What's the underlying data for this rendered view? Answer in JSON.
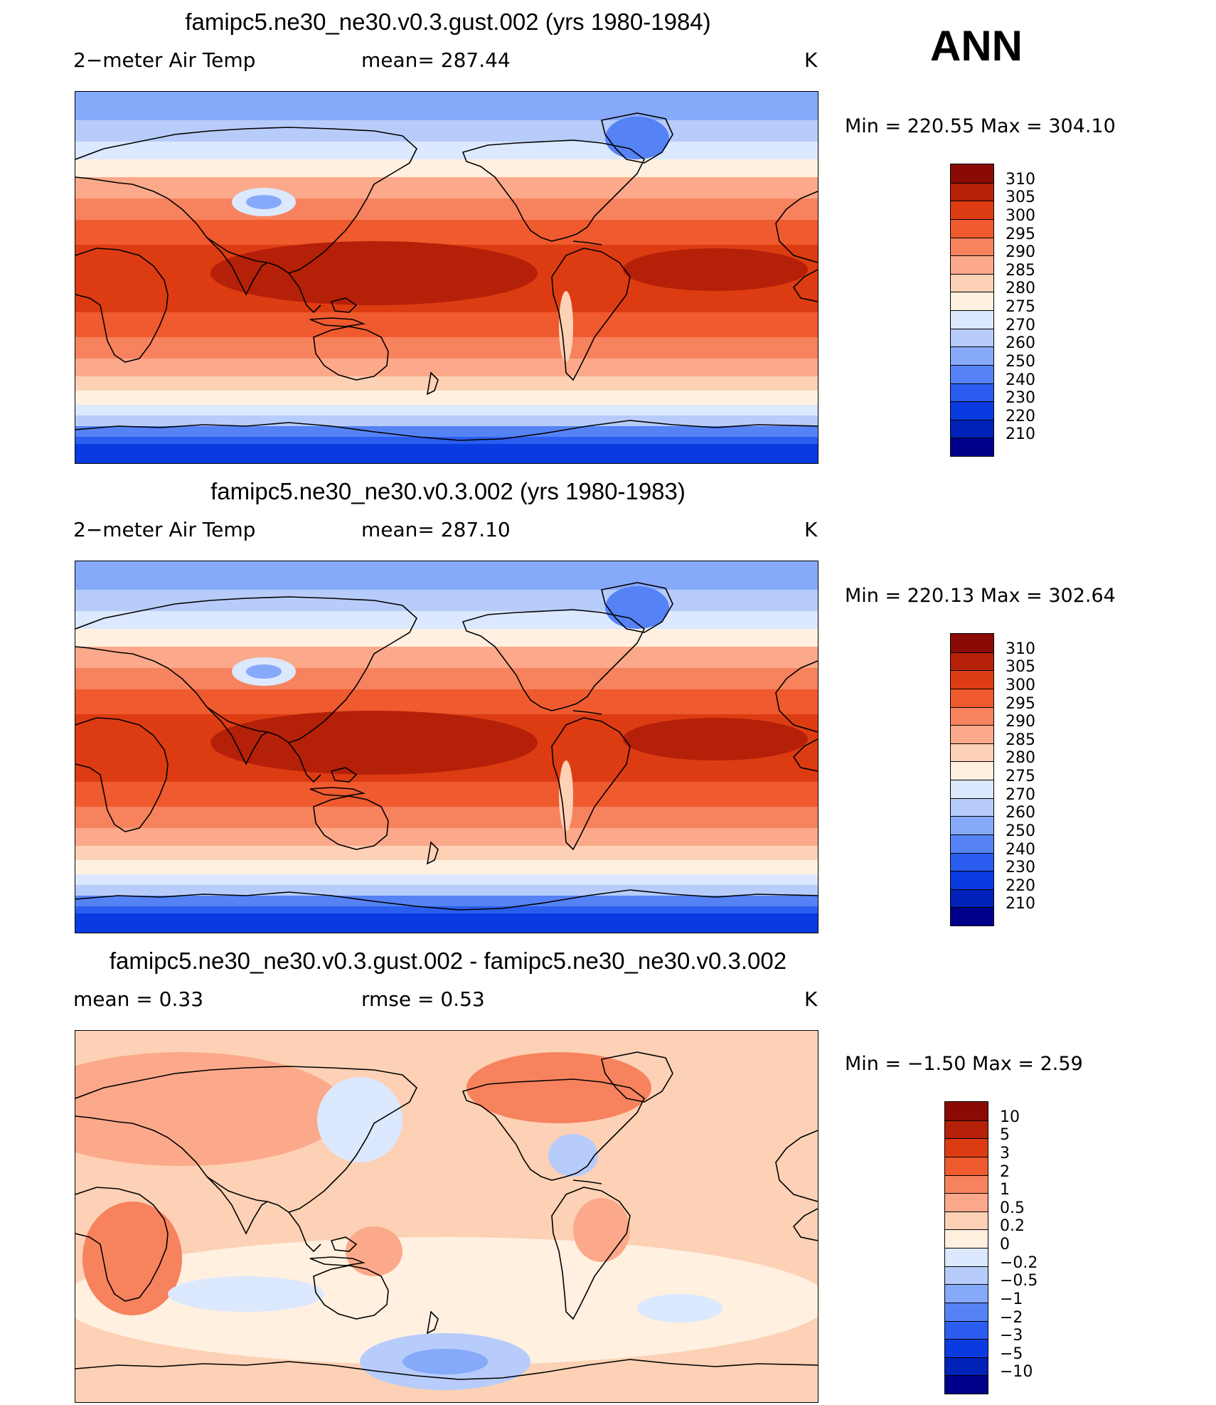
{
  "season": "ANN",
  "palette_abs": [
    "#00008b",
    "#0022b8",
    "#0a3be0",
    "#2b5ef0",
    "#5583f5",
    "#86a9f9",
    "#b7ccfb",
    "#dbe8fd",
    "#fff0e0",
    "#fdd1b5",
    "#fba98a",
    "#f7825e",
    "#ef5a2e",
    "#dd3c12",
    "#b52009",
    "#8a0b06"
  ],
  "palette_diff": [
    "#00008b",
    "#0022b8",
    "#0a3be0",
    "#2b5ef0",
    "#5583f5",
    "#86a9f9",
    "#b7ccfb",
    "#dbe8fd",
    "#fff0e0",
    "#fdd1b5",
    "#fba98a",
    "#f7825e",
    "#ef5a2e",
    "#dd3c12",
    "#b52009",
    "#8a0b06"
  ],
  "panels": [
    {
      "title": "famipc5.ne30_ne30.v0.3.gust.002 (yrs 1980-1984)",
      "left_label": "2−meter Air Temp",
      "mid_label": "mean=  287.44",
      "units": "K",
      "minmax": "Min  =  220.55  Max  =  304.10",
      "levels": [
        "310",
        "305",
        "300",
        "295",
        "290",
        "285",
        "280",
        "275",
        "270",
        "260",
        "250",
        "240",
        "230",
        "220",
        "210"
      ],
      "kind": "abs"
    },
    {
      "title": "famipc5.ne30_ne30.v0.3.002 (yrs 1980-1983)",
      "left_label": "2−meter Air Temp",
      "mid_label": "mean=  287.10",
      "units": "K",
      "minmax": "Min  =  220.13  Max  =  302.64",
      "levels": [
        "310",
        "305",
        "300",
        "295",
        "290",
        "285",
        "280",
        "275",
        "270",
        "260",
        "250",
        "240",
        "230",
        "220",
        "210"
      ],
      "kind": "abs"
    },
    {
      "title": "famipc5.ne30_ne30.v0.3.gust.002 - famipc5.ne30_ne30.v0.3.002",
      "left_label": "mean  =      0.33",
      "mid_label": "rmse  =      0.53",
      "units": "K",
      "minmax": "Min  =    −1.50  Max  =      2.59",
      "levels": [
        "10",
        "5",
        "3",
        "2",
        "1",
        "0.5",
        "0.2",
        "0",
        "−0.2",
        "−0.5",
        "−1",
        "−2",
        "−3",
        "−5",
        "−10"
      ],
      "kind": "diff"
    }
  ]
}
